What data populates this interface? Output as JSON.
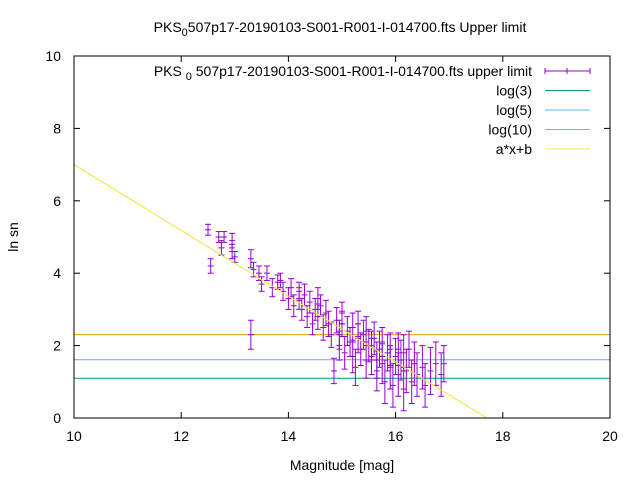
{
  "chart_data": {
    "type": "scatter",
    "title": "PKS_0507p17-20190103-S001-R001-I-014700.fts Upper limit",
    "title_parts": {
      "prefix": "PKS",
      "subscript": "0",
      "suffix": "507p17-20190103-S001-R001-I-014700.fts Upper limit"
    },
    "xlabel": "Magnitude [mag]",
    "ylabel": "ln sn",
    "xlim": [
      10,
      20
    ],
    "ylim": [
      0,
      10
    ],
    "xticks": [
      "10",
      "12",
      "14",
      "16",
      "18",
      "20"
    ],
    "yticks": [
      "0",
      "2",
      "4",
      "6",
      "8",
      "10"
    ],
    "grid": false,
    "legend_position": "top-right",
    "legend": [
      {
        "label_prefix": "PKS",
        "label_sub": "0",
        "label_suffix": "507p17-20190103-S001-R001-I-014700.fts upper limit",
        "color": "#9400d3",
        "style": "errorbar"
      },
      {
        "label": "log(3)",
        "color": "#009e73",
        "style": "line"
      },
      {
        "label": "log(5)",
        "color": "#56b4e9",
        "style": "line"
      },
      {
        "label": "log(10)",
        "color": "#e69f00",
        "style": "line"
      },
      {
        "label": "a*x+b",
        "color": "#f0e442",
        "style": "line"
      }
    ],
    "hlines": [
      {
        "name": "log(3)",
        "y": 1.0986,
        "color": "#009e73"
      },
      {
        "name": "log(5)",
        "y": 1.6094,
        "color": "#56b4e9"
      },
      {
        "name": "log(10)",
        "y": 2.3026,
        "color": "#e69f00"
      }
    ],
    "fit": {
      "a": -0.909,
      "b": 16.09,
      "color": "#f0e442"
    },
    "series": [
      {
        "name": "upper limit",
        "color": "#9400d3",
        "points": [
          [
            12.5,
            5.2,
            0.15
          ],
          [
            12.55,
            4.2,
            0.2
          ],
          [
            12.7,
            5.0,
            0.15
          ],
          [
            12.75,
            4.7,
            0.2
          ],
          [
            12.8,
            5.0,
            0.15
          ],
          [
            12.95,
            4.9,
            0.2
          ],
          [
            12.95,
            4.6,
            0.2
          ],
          [
            13.0,
            4.45,
            0.15
          ],
          [
            13.3,
            4.4,
            0.25
          ],
          [
            13.3,
            2.3,
            0.4
          ],
          [
            13.35,
            4.1,
            0.2
          ],
          [
            13.45,
            4.0,
            0.2
          ],
          [
            13.5,
            3.7,
            0.2
          ],
          [
            13.6,
            4.0,
            0.2
          ],
          [
            13.7,
            3.6,
            0.25
          ],
          [
            13.8,
            3.75,
            0.2
          ],
          [
            13.9,
            3.5,
            0.25
          ],
          [
            14.0,
            3.3,
            0.3
          ],
          [
            14.05,
            3.6,
            0.25
          ],
          [
            14.1,
            3.1,
            0.3
          ],
          [
            14.2,
            3.3,
            0.3
          ],
          [
            14.25,
            3.0,
            0.3
          ],
          [
            14.3,
            3.4,
            0.3
          ],
          [
            14.35,
            2.8,
            0.3
          ],
          [
            14.4,
            3.2,
            0.3
          ],
          [
            14.45,
            2.6,
            0.3
          ],
          [
            14.5,
            3.0,
            0.3
          ],
          [
            14.55,
            2.8,
            0.35
          ],
          [
            14.6,
            3.1,
            0.3
          ],
          [
            14.65,
            2.5,
            0.35
          ],
          [
            14.7,
            2.9,
            0.35
          ],
          [
            14.75,
            2.6,
            0.35
          ],
          [
            14.8,
            2.3,
            0.35
          ],
          [
            14.85,
            1.3,
            0.35
          ],
          [
            14.9,
            2.7,
            0.35
          ],
          [
            14.95,
            2.3,
            0.4
          ],
          [
            15.0,
            2.6,
            0.35
          ],
          [
            15.05,
            1.8,
            0.45
          ],
          [
            15.1,
            2.4,
            0.4
          ],
          [
            15.15,
            2.1,
            0.4
          ],
          [
            15.2,
            2.5,
            0.4
          ],
          [
            15.25,
            1.4,
            0.5
          ],
          [
            15.3,
            2.2,
            0.4
          ],
          [
            15.35,
            1.9,
            0.45
          ],
          [
            15.4,
            2.3,
            0.4
          ],
          [
            15.45,
            1.6,
            0.5
          ],
          [
            15.5,
            2.0,
            0.45
          ],
          [
            15.55,
            1.7,
            0.5
          ],
          [
            15.6,
            2.2,
            0.45
          ],
          [
            15.65,
            1.3,
            0.55
          ],
          [
            15.7,
            1.9,
            0.5
          ],
          [
            15.75,
            1.5,
            0.55
          ],
          [
            15.8,
            1.0,
            0.6
          ],
          [
            15.85,
            1.8,
            0.5
          ],
          [
            15.9,
            1.4,
            0.6
          ],
          [
            15.95,
            0.9,
            0.6
          ],
          [
            16.0,
            1.7,
            0.5
          ],
          [
            16.05,
            1.2,
            0.6
          ],
          [
            16.1,
            1.6,
            0.55
          ],
          [
            16.15,
            0.8,
            0.6
          ],
          [
            16.2,
            1.3,
            0.6
          ],
          [
            16.25,
            1.9,
            0.5
          ],
          [
            16.3,
            1.0,
            0.6
          ],
          [
            16.35,
            1.5,
            0.6
          ],
          [
            16.4,
            1.2,
            0.6
          ],
          [
            16.5,
            1.4,
            0.6
          ],
          [
            16.55,
            0.9,
            0.6
          ],
          [
            16.65,
            1.3,
            0.65
          ],
          [
            16.75,
            1.5,
            0.6
          ],
          [
            16.85,
            1.2,
            0.6
          ],
          [
            16.9,
            1.5,
            0.5
          ],
          [
            15.45,
            2.4,
            0.4
          ],
          [
            15.55,
            2.0,
            0.4
          ],
          [
            15.75,
            2.1,
            0.4
          ],
          [
            15.9,
            1.9,
            0.45
          ],
          [
            16.05,
            1.9,
            0.45
          ],
          [
            14.55,
            3.3,
            0.3
          ],
          [
            14.2,
            3.5,
            0.25
          ],
          [
            13.85,
            3.8,
            0.2
          ],
          [
            15.0,
            2.9,
            0.3
          ],
          [
            15.3,
            2.6,
            0.35
          ],
          [
            16.15,
            1.8,
            0.5
          ],
          [
            15.65,
            1.6,
            0.5
          ],
          [
            15.2,
            1.7,
            0.45
          ],
          [
            14.95,
            2.0,
            0.4
          ]
        ]
      }
    ]
  }
}
